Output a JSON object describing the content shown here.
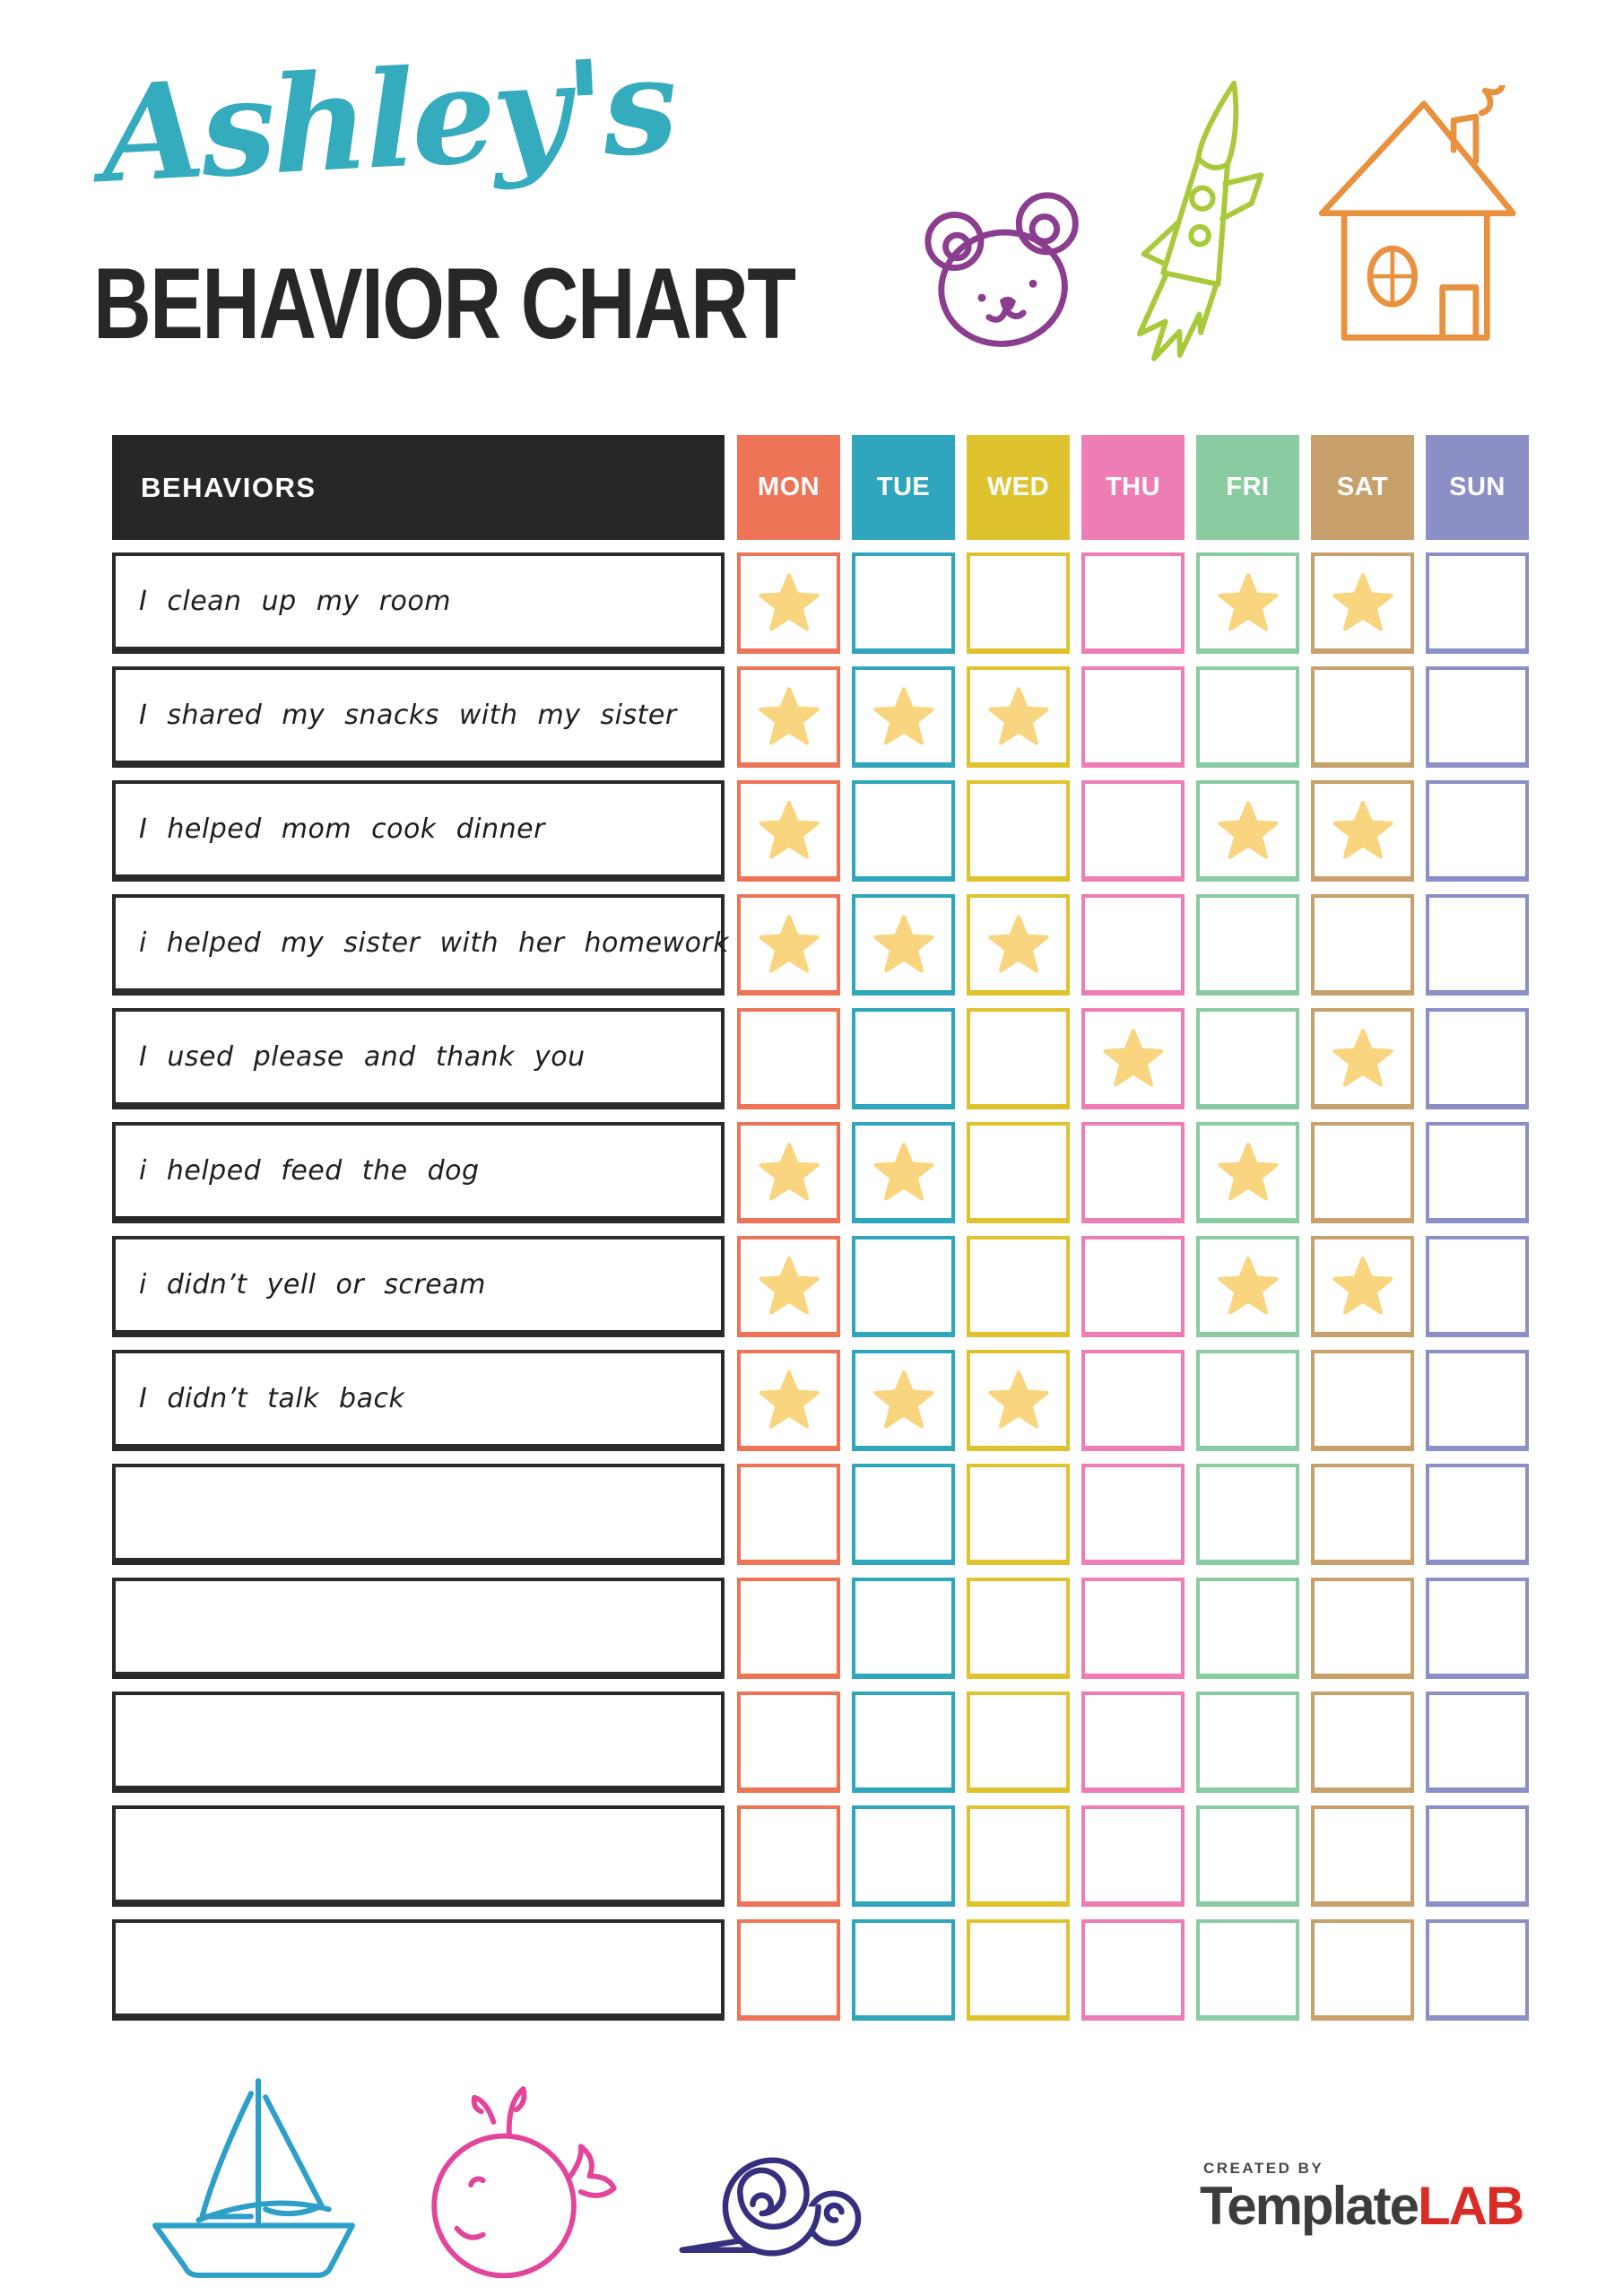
{
  "title": {
    "name": "Ashley's",
    "subtitle": "BEHAVIOR CHART"
  },
  "table": {
    "behaviors_header": "BEHAVIORS",
    "days": [
      {
        "label": "MON",
        "color": "#ED7456"
      },
      {
        "label": "TUE",
        "color": "#2FA6BB"
      },
      {
        "label": "WED",
        "color": "#DFC32E"
      },
      {
        "label": "THU",
        "color": "#EF7DB5"
      },
      {
        "label": "FRI",
        "color": "#8BCBA2"
      },
      {
        "label": "SAT",
        "color": "#C8A06B"
      },
      {
        "label": "SUN",
        "color": "#8C8FC6"
      }
    ],
    "rows": [
      {
        "behavior": "I clean up my room",
        "stars": [
          1,
          0,
          0,
          0,
          1,
          1,
          0
        ]
      },
      {
        "behavior": "I shared my snacks with my sister",
        "stars": [
          1,
          1,
          1,
          0,
          0,
          0,
          0
        ]
      },
      {
        "behavior": "I helped mom cook dinner",
        "stars": [
          1,
          0,
          0,
          0,
          1,
          1,
          0
        ]
      },
      {
        "behavior": "i helped my sister with her homework",
        "stars": [
          1,
          1,
          1,
          0,
          0,
          0,
          0
        ]
      },
      {
        "behavior": "I used please and thank you",
        "stars": [
          0,
          0,
          0,
          1,
          0,
          1,
          0
        ]
      },
      {
        "behavior": "i helped feed the dog",
        "stars": [
          1,
          1,
          0,
          0,
          1,
          0,
          0
        ]
      },
      {
        "behavior": "i didn’t yell or scream",
        "stars": [
          1,
          0,
          0,
          0,
          1,
          1,
          0
        ]
      },
      {
        "behavior": "I didn’t talk back",
        "stars": [
          1,
          1,
          1,
          0,
          0,
          0,
          0
        ]
      },
      {
        "behavior": "",
        "stars": [
          0,
          0,
          0,
          0,
          0,
          0,
          0
        ]
      },
      {
        "behavior": "",
        "stars": [
          0,
          0,
          0,
          0,
          0,
          0,
          0
        ]
      },
      {
        "behavior": "",
        "stars": [
          0,
          0,
          0,
          0,
          0,
          0,
          0
        ]
      },
      {
        "behavior": "",
        "stars": [
          0,
          0,
          0,
          0,
          0,
          0,
          0
        ]
      },
      {
        "behavior": "",
        "stars": [
          0,
          0,
          0,
          0,
          0,
          0,
          0
        ]
      }
    ]
  },
  "footer": {
    "created_by": "CREATED BY",
    "brand_primary": "Template",
    "brand_accent": "LAB"
  },
  "icons": {
    "top": [
      "bear-icon",
      "rocket-icon",
      "house-icon"
    ],
    "bottom": [
      "sailboat-icon",
      "whale-icon",
      "snail-icon"
    ],
    "cell_marker": "star-icon"
  },
  "colors": {
    "title_teal": "#35ABBE",
    "subtitle_black": "#272727",
    "header_black": "#272727",
    "star_gold": "#F8D57E",
    "bear_purple": "#8B3D8F",
    "rocket_green": "#A9C93B",
    "house_orange": "#E8913F",
    "sailboat_blue": "#2D9FC8",
    "whale_pink": "#E2459B",
    "snail_navy": "#352F7E",
    "logo_text_gray": "#3C3C3C",
    "logo_red": "#DA2C27"
  }
}
